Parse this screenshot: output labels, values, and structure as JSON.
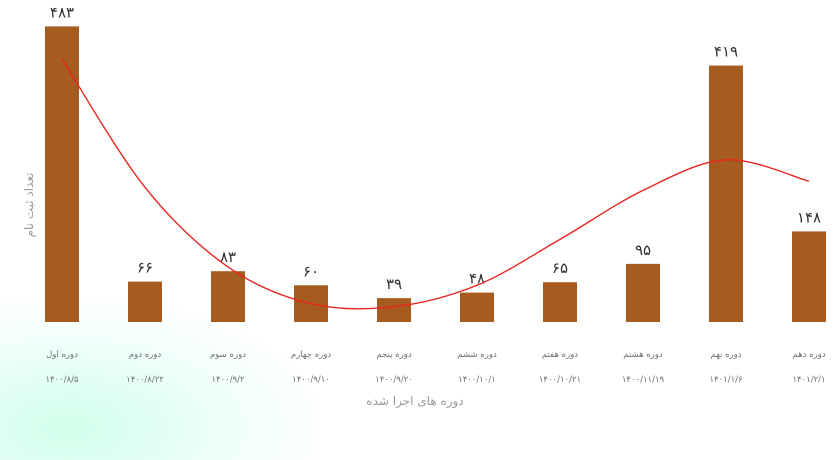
{
  "colors": {
    "bar": "#a65b1f",
    "trend": "#e8261f",
    "text": "#333333",
    "muted": "#6e6e6e"
  },
  "chart_data": {
    "type": "bar",
    "title": "",
    "xlabel": "دوره های اجرا شده",
    "ylabel": "تعداد ثبت نام",
    "ylim": [
      0,
      500
    ],
    "grid": false,
    "legend": "none",
    "categories": [
      "دوره اول",
      "دوره دوم",
      "دوره سوم",
      "دوره چهارم",
      "دوره پنجم",
      "دوره ششم",
      "دوره هفتم",
      "دوره هشتم",
      "دوره نهم",
      "دوره دهم"
    ],
    "dates": [
      "۱۴۰۰/۸/۵",
      "۱۴۰۰/۸/۲۲",
      "۱۴۰۰/۹/۲",
      "۱۴۰۰/۹/۱۰",
      "۱۴۰۰/۹/۲۰",
      "۱۴۰۰/۱۰/۱",
      "۱۴۰۰/۱۰/۲۱",
      "۱۴۰۰/۱۱/۱۹",
      "۱۴۰۱/۱/۶",
      "۱۴۰۱/۲/۱"
    ],
    "values": [
      483,
      66,
      83,
      60,
      39,
      48,
      65,
      95,
      419,
      148
    ],
    "value_labels": [
      "۴۸۳",
      "۶۶",
      "۸۳",
      "۶۰",
      "۳۹",
      "۴۸",
      "۶۵",
      "۹۵",
      "۴۱۹",
      "۱۴۸"
    ],
    "trendline": {
      "type": "polynomial",
      "values": [
        430,
        220,
        90,
        30,
        25,
        60,
        135,
        215,
        265,
        230
      ]
    }
  }
}
